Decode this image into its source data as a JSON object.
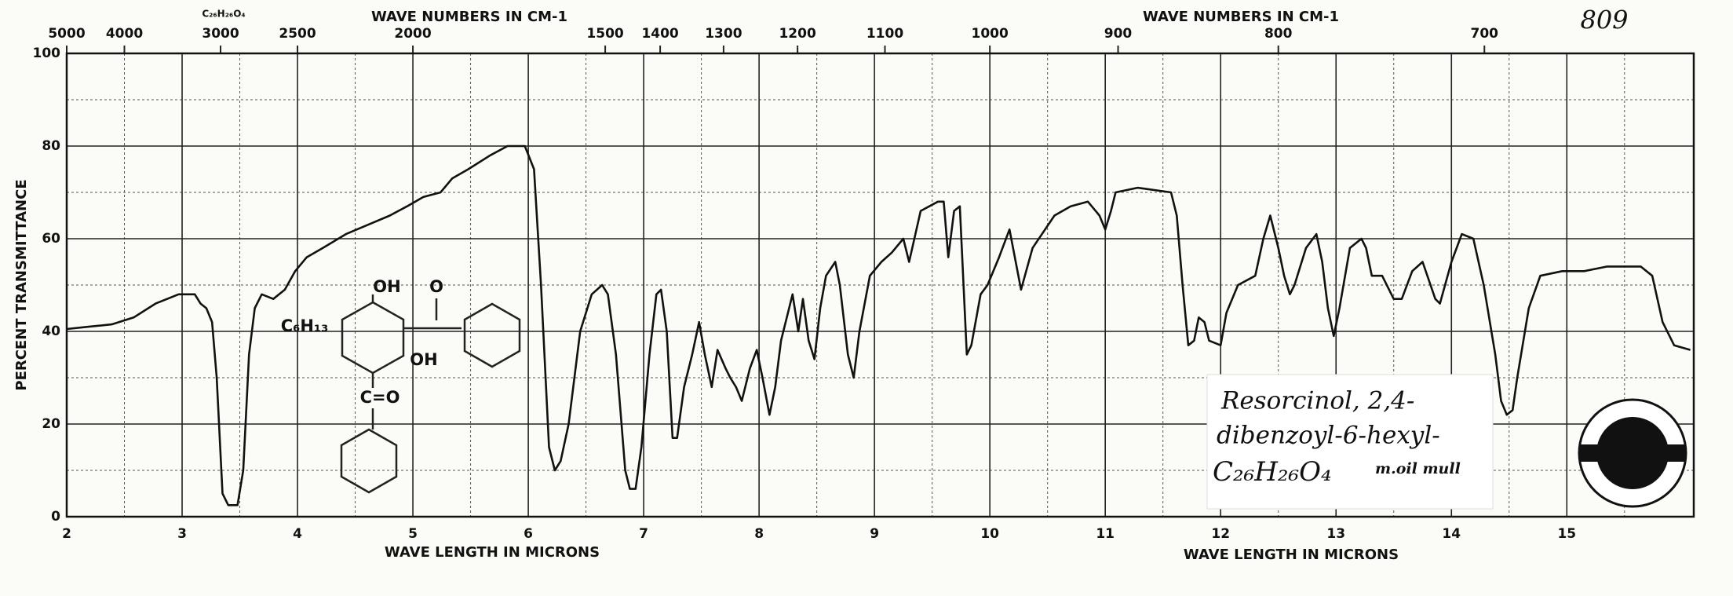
{
  "chart_data": {
    "type": "line",
    "title": "WAVE NUMBERS IN CM-1",
    "title_right": "WAVE NUMBERS IN CM-1",
    "xlabel": "WAVE LENGTH IN MICRONS",
    "xlabel_right": "WAVE LENGTH IN MICRONS",
    "ylabel": "PERCENT TRANSMITTANCE",
    "formula_top": "C₂₆H₂₆O₄",
    "sheet_number": "809",
    "annotation": {
      "name_line1": "Resorcinol, 2,4-",
      "name_line2": "dibenzoyl-6-hexyl-",
      "formula": "C₂₆H₂₆O₄",
      "sample": "m.oil mull"
    },
    "structure_labels": [
      "OH",
      "O",
      "C₆H₁₃",
      "OH",
      "C=O"
    ],
    "color": "#111111",
    "grid": true,
    "xlim": [
      2,
      16.1
    ],
    "ylim": [
      0,
      100
    ],
    "xticks": [
      2,
      3,
      4,
      5,
      6,
      7,
      8,
      9,
      10,
      11,
      12,
      13,
      14,
      15
    ],
    "yticks": [
      0,
      20,
      40,
      60,
      80,
      100
    ],
    "minor_xticks": [
      2.5,
      3.5,
      4.5,
      5.5,
      6.5,
      7.5,
      8.5,
      9.5,
      10.5,
      11.5,
      12.5,
      13.5,
      14.5,
      15.5
    ],
    "minor_yticks": [
      10,
      30,
      50,
      70,
      90
    ],
    "top_ticks": [
      5000,
      4000,
      3000,
      2500,
      2000,
      1500,
      1400,
      1300,
      1200,
      1100,
      1000,
      900,
      800,
      700
    ],
    "x": [
      2,
      2.19,
      2.39,
      2.58,
      2.77,
      2.97,
      3.11,
      3.16,
      3.21,
      3.26,
      3.3,
      3.35,
      3.4,
      3.48,
      3.53,
      3.58,
      3.63,
      3.69,
      3.79,
      3.89,
      3.98,
      4.08,
      4.22,
      4.42,
      4.61,
      4.8,
      4.95,
      5.09,
      5.24,
      5.34,
      5.48,
      5.67,
      5.82,
      5.97,
      6.05,
      6.11,
      6.18,
      6.23,
      6.28,
      6.35,
      6.45,
      6.55,
      6.64,
      6.69,
      6.76,
      6.84,
      6.88,
      6.93,
      6.98,
      7.05,
      7.11,
      7.15,
      7.2,
      7.25,
      7.29,
      7.35,
      7.42,
      7.48,
      7.53,
      7.59,
      7.64,
      7.71,
      7.75,
      7.8,
      7.85,
      7.92,
      7.98,
      8.03,
      8.09,
      8.14,
      8.19,
      8.29,
      8.34,
      8.38,
      8.43,
      8.48,
      8.53,
      8.58,
      8.66,
      8.7,
      8.77,
      8.82,
      8.87,
      8.96,
      9.06,
      9.15,
      9.25,
      9.3,
      9.4,
      9.55,
      9.6,
      9.64,
      9.69,
      9.74,
      9.8,
      9.84,
      9.92,
      9.98,
      10.08,
      10.17,
      10.27,
      10.37,
      10.56,
      10.7,
      10.85,
      10.95,
      11.0,
      11.05,
      11.09,
      11.28,
      11.57,
      11.62,
      11.67,
      11.72,
      11.77,
      11.81,
      11.86,
      11.9,
      12.0,
      12.05,
      12.15,
      12.3,
      12.37,
      12.43,
      12.5,
      12.55,
      12.6,
      12.64,
      12.74,
      12.83,
      12.88,
      12.93,
      12.98,
      13.03,
      13.12,
      13.22,
      13.26,
      13.31,
      13.4,
      13.5,
      13.57,
      13.66,
      13.75,
      13.86,
      13.9,
      14.0,
      14.09,
      14.19,
      14.28,
      14.38,
      14.43,
      14.48,
      14.53,
      14.57,
      14.67,
      14.77,
      14.96,
      15.15,
      15.35,
      15.64,
      15.74,
      15.83,
      15.93,
      16.07
    ],
    "values": [
      40.5,
      41,
      41.5,
      43,
      46,
      48,
      48,
      46,
      45,
      42,
      30,
      5,
      2.5,
      2.5,
      10,
      35,
      45,
      48,
      47,
      49,
      53,
      56,
      58,
      61,
      63,
      65,
      67,
      69,
      70,
      73,
      75,
      78,
      80,
      80,
      75,
      50,
      15,
      10,
      12,
      20,
      40,
      48,
      50,
      48,
      35,
      10,
      6,
      6,
      15,
      35,
      48,
      49,
      40,
      17,
      17,
      28,
      35,
      42,
      35,
      28,
      36,
      32,
      30,
      28,
      25,
      32,
      36,
      30,
      22,
      28,
      38,
      48,
      40,
      47,
      38,
      34,
      45,
      52,
      55,
      50,
      35,
      30,
      40,
      52,
      55,
      57,
      60,
      55,
      66,
      68,
      68,
      56,
      66,
      67,
      35,
      37,
      48,
      50,
      56,
      62,
      49,
      58,
      65,
      67,
      68,
      65,
      62,
      66,
      70,
      71,
      70,
      65,
      50,
      37,
      38,
      43,
      42,
      38,
      37,
      44,
      50,
      52,
      60,
      65,
      58,
      52,
      48,
      50,
      58,
      61,
      55,
      45,
      39,
      45,
      58,
      60,
      58,
      52,
      52,
      47,
      47,
      53,
      55,
      47,
      46,
      55,
      61,
      60,
      50,
      35,
      25,
      22,
      23,
      30,
      45,
      52,
      53,
      53,
      54,
      54,
      52,
      42,
      37,
      36
    ]
  }
}
